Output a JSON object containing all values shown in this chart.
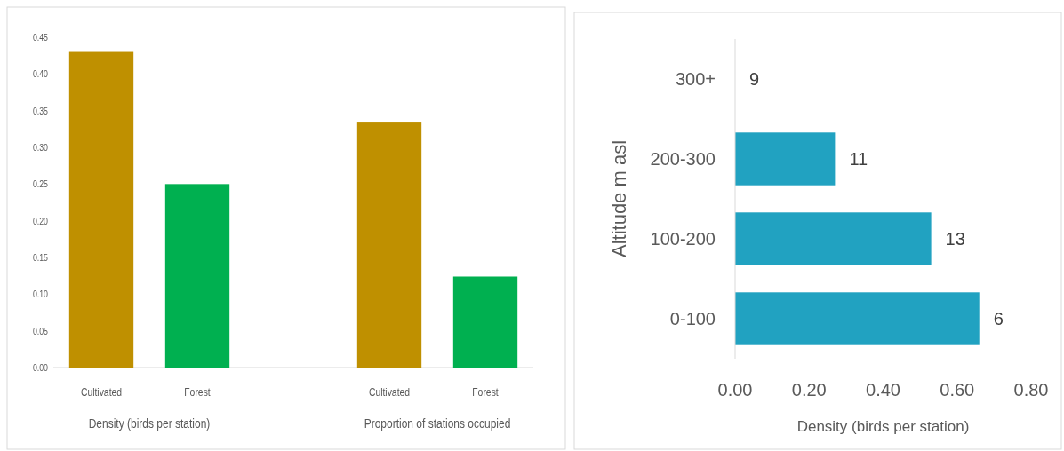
{
  "chart_data": [
    {
      "type": "bar",
      "categories": [
        "Cultivated",
        "Forest",
        "Cultivated",
        "Forest"
      ],
      "values": [
        0.43,
        0.25,
        0.335,
        0.124
      ],
      "colors": [
        "#bf9000",
        "#00b050",
        "#bf9000",
        "#00b050"
      ],
      "ylim": [
        0,
        0.45
      ],
      "yticks": [
        {
          "value": 0,
          "label": "0.00"
        },
        {
          "value": 0.05,
          "label": "0.05"
        },
        {
          "value": 0.1,
          "label": "0.10"
        },
        {
          "value": 0.15,
          "label": "0.15"
        },
        {
          "value": 0.2,
          "label": "0.20"
        },
        {
          "value": 0.25,
          "label": "0.25"
        },
        {
          "value": 0.3,
          "label": "0.30"
        },
        {
          "value": 0.35,
          "label": "0.35"
        },
        {
          "value": 0.4,
          "label": "0.40"
        },
        {
          "value": 0.45,
          "label": "0.45"
        }
      ],
      "annotations": [
        "Density (birds per station)",
        "Proportion of stations occupied"
      ],
      "grid": false
    },
    {
      "type": "bar",
      "orientation": "horizontal",
      "categories": [
        "300+",
        "200-300",
        "100-200",
        "0-100"
      ],
      "values": [
        0,
        0.27,
        0.53,
        0.66
      ],
      "color": "#21a2c1",
      "annotations": [
        {
          "text": "9",
          "x": 0,
          "y": "300+"
        },
        {
          "text": "11",
          "x": 0.27,
          "y": "200-300"
        },
        {
          "text": "13",
          "x": 0.53,
          "y": "100-200"
        },
        {
          "text": "6",
          "x": 0.66,
          "y": "0-100"
        }
      ],
      "xlim": [
        0,
        0.8
      ],
      "xticks": [
        {
          "value": 0,
          "label": "0.00"
        },
        {
          "value": 0.2,
          "label": "0.20"
        },
        {
          "value": 0.4,
          "label": "0.40"
        },
        {
          "value": 0.6,
          "label": "0.60"
        },
        {
          "value": 0.8,
          "label": "0.80"
        }
      ],
      "xlabel": "Density (birds per station)",
      "ylabel": "Altitude m asl",
      "grid": false
    }
  ]
}
